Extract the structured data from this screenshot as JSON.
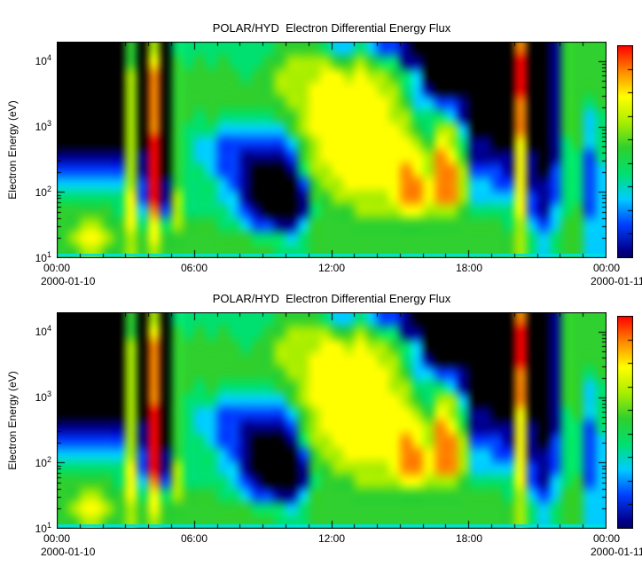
{
  "page": {
    "background": "#ffffff"
  },
  "chart_data": {
    "type": "heatmap",
    "title": "POLAR/HYD  Electron Differential Energy Flux",
    "ylabel": "Electron Energy (eV)",
    "x_ticks": [
      "00:00",
      "06:00",
      "12:00",
      "18:00",
      "00:00"
    ],
    "x_range_hours": [
      0,
      24
    ],
    "x_minor_tick_hours": 1,
    "date_left": "2000-01-10",
    "date_right": "2000-01-11",
    "y_tick_exponents": [
      1,
      2,
      3,
      4
    ],
    "y_log_range": [
      1.0,
      4.3
    ],
    "y_units": "eV",
    "grid_lines": "off",
    "legend": "colorbar-right",
    "repeated_panels": 2,
    "colormap": [
      "#000000",
      "#00008c",
      "#0040ff",
      "#00ccff",
      "#00e070",
      "#2fd02f",
      "#aaee00",
      "#ffff00",
      "#ff8800",
      "#ff0000"
    ],
    "bottom_strip_color": "#00e0e0",
    "colorbar": {
      "tick_count": 9,
      "top_value_color": "#ff0000",
      "bottom_value_color": "#00008c"
    },
    "value_scale": {
      "min": 0,
      "max": 9,
      "description": "relative log differential energy flux level; 0=black (no/below-threshold flux), 9=red (maximum flux)"
    },
    "grid": {
      "cols": 48,
      "rows": 16,
      "row_order": "bottom-to-top",
      "time_bin_hours": 0.5,
      "values": [
        [
          5,
          5,
          6,
          6,
          5,
          5,
          6,
          5,
          6,
          5,
          5,
          5,
          5,
          5,
          5,
          5,
          5,
          5,
          5,
          4,
          4,
          4,
          5,
          5,
          5,
          5,
          5,
          5,
          5,
          5,
          5,
          5,
          5,
          5,
          5,
          5,
          5,
          5,
          5,
          5,
          6,
          4,
          3,
          4,
          5,
          5,
          3,
          3
        ],
        [
          5,
          6,
          7,
          7,
          6,
          5,
          6,
          5,
          7,
          5,
          5,
          5,
          5,
          5,
          5,
          5,
          5,
          4,
          4,
          4,
          3,
          4,
          5,
          5,
          5,
          5,
          5,
          5,
          5,
          5,
          5,
          5,
          5,
          5,
          5,
          5,
          5,
          5,
          5,
          5,
          6,
          4,
          3,
          4,
          5,
          5,
          3,
          3
        ],
        [
          5,
          5,
          6,
          6,
          5,
          5,
          7,
          4,
          7,
          4,
          6,
          5,
          5,
          5,
          4,
          4,
          3,
          2,
          2,
          1,
          1,
          3,
          5,
          5,
          5,
          5,
          5,
          5,
          5,
          5,
          5,
          5,
          5,
          5,
          5,
          5,
          5,
          5,
          5,
          4,
          6,
          3,
          2,
          3,
          5,
          5,
          3,
          3
        ],
        [
          5,
          5,
          5,
          5,
          5,
          4,
          7,
          3,
          8,
          2,
          6,
          4,
          4,
          4,
          4,
          3,
          2,
          1,
          0,
          0,
          0,
          1,
          4,
          5,
          5,
          5,
          6,
          6,
          6,
          6,
          7,
          7,
          6,
          6,
          6,
          5,
          4,
          4,
          4,
          4,
          7,
          2,
          1,
          3,
          4,
          5,
          2,
          3
        ],
        [
          4,
          4,
          4,
          4,
          4,
          4,
          7,
          2,
          9,
          1,
          6,
          4,
          4,
          4,
          3,
          3,
          1,
          0,
          0,
          0,
          0,
          1,
          5,
          5,
          6,
          6,
          6,
          6,
          6,
          7,
          8,
          8,
          7,
          8,
          8,
          6,
          3,
          3,
          3,
          3,
          7,
          2,
          1,
          2,
          4,
          4,
          2,
          3
        ],
        [
          3,
          3,
          3,
          3,
          3,
          3,
          6,
          2,
          9,
          1,
          5,
          4,
          4,
          4,
          3,
          2,
          1,
          0,
          0,
          0,
          0,
          2,
          5,
          6,
          6,
          7,
          7,
          7,
          7,
          7,
          8,
          8,
          7,
          8,
          8,
          6,
          3,
          3,
          2,
          2,
          7,
          1,
          1,
          2,
          4,
          4,
          2,
          3
        ],
        [
          2,
          2,
          2,
          2,
          2,
          2,
          6,
          1,
          9,
          0,
          5,
          4,
          4,
          3,
          2,
          2,
          1,
          0,
          0,
          0,
          1,
          4,
          6,
          6,
          7,
          7,
          7,
          7,
          7,
          7,
          8,
          7,
          6,
          8,
          8,
          6,
          2,
          2,
          2,
          1,
          7,
          1,
          0,
          2,
          4,
          4,
          2,
          3
        ],
        [
          1,
          1,
          1,
          1,
          1,
          1,
          6,
          1,
          9,
          0,
          5,
          4,
          3,
          3,
          2,
          2,
          1,
          1,
          1,
          1,
          2,
          5,
          6,
          7,
          7,
          7,
          7,
          7,
          7,
          7,
          7,
          7,
          6,
          8,
          7,
          5,
          1,
          1,
          1,
          1,
          7,
          1,
          0,
          1,
          4,
          4,
          2,
          4
        ],
        [
          0,
          0,
          0,
          0,
          0,
          0,
          6,
          0,
          9,
          0,
          5,
          4,
          3,
          3,
          2,
          2,
          2,
          2,
          2,
          2,
          3,
          5,
          6,
          7,
          7,
          7,
          7,
          7,
          7,
          7,
          7,
          6,
          5,
          7,
          6,
          4,
          1,
          1,
          0,
          0,
          7,
          0,
          0,
          1,
          4,
          5,
          3,
          4
        ],
        [
          0,
          0,
          0,
          0,
          0,
          0,
          6,
          0,
          8,
          0,
          5,
          4,
          4,
          4,
          3,
          3,
          3,
          3,
          3,
          3,
          5,
          6,
          7,
          7,
          7,
          7,
          7,
          7,
          7,
          7,
          6,
          5,
          4,
          6,
          6,
          3,
          0,
          0,
          0,
          0,
          8,
          0,
          0,
          1,
          5,
          5,
          3,
          4
        ],
        [
          0,
          0,
          0,
          0,
          0,
          0,
          6,
          0,
          8,
          0,
          5,
          5,
          4,
          5,
          4,
          4,
          4,
          4,
          4,
          5,
          5,
          6,
          7,
          7,
          7,
          7,
          7,
          7,
          7,
          6,
          6,
          4,
          4,
          4,
          3,
          1,
          0,
          0,
          0,
          0,
          8,
          0,
          0,
          1,
          5,
          5,
          3,
          4
        ],
        [
          0,
          0,
          0,
          0,
          0,
          0,
          6,
          0,
          8,
          0,
          5,
          5,
          5,
          5,
          5,
          5,
          5,
          5,
          5,
          5,
          6,
          6,
          7,
          7,
          7,
          7,
          7,
          7,
          7,
          6,
          5,
          3,
          3,
          2,
          2,
          1,
          0,
          0,
          0,
          0,
          8,
          0,
          0,
          1,
          5,
          5,
          4,
          5
        ],
        [
          0,
          0,
          0,
          0,
          0,
          0,
          6,
          0,
          8,
          0,
          5,
          5,
          5,
          5,
          5,
          5,
          5,
          5,
          5,
          6,
          6,
          6,
          7,
          7,
          7,
          7,
          7,
          7,
          6,
          6,
          4,
          3,
          1,
          0,
          0,
          0,
          0,
          0,
          0,
          0,
          9,
          0,
          0,
          1,
          5,
          5,
          5,
          5
        ],
        [
          0,
          0,
          0,
          0,
          0,
          0,
          6,
          0,
          8,
          0,
          5,
          5,
          5,
          5,
          5,
          5,
          4,
          5,
          5,
          6,
          6,
          6,
          6,
          7,
          7,
          6,
          7,
          6,
          6,
          5,
          4,
          3,
          0,
          0,
          0,
          0,
          0,
          0,
          0,
          0,
          9,
          0,
          0,
          1,
          5,
          5,
          5,
          5
        ],
        [
          0,
          0,
          0,
          0,
          0,
          0,
          5,
          0,
          7,
          0,
          5,
          4,
          5,
          4,
          5,
          4,
          4,
          4,
          5,
          5,
          6,
          6,
          6,
          6,
          5,
          5,
          6,
          5,
          4,
          4,
          1,
          1,
          0,
          0,
          0,
          0,
          0,
          0,
          0,
          0,
          9,
          0,
          0,
          1,
          5,
          5,
          5,
          5
        ],
        [
          0,
          0,
          0,
          0,
          0,
          0,
          5,
          0,
          6,
          0,
          4,
          4,
          4,
          4,
          4,
          4,
          4,
          4,
          4,
          5,
          5,
          5,
          5,
          4,
          3,
          3,
          4,
          3,
          2,
          2,
          1,
          0,
          0,
          0,
          0,
          0,
          0,
          0,
          0,
          0,
          8,
          0,
          0,
          1,
          5,
          5,
          5,
          5
        ]
      ]
    }
  }
}
